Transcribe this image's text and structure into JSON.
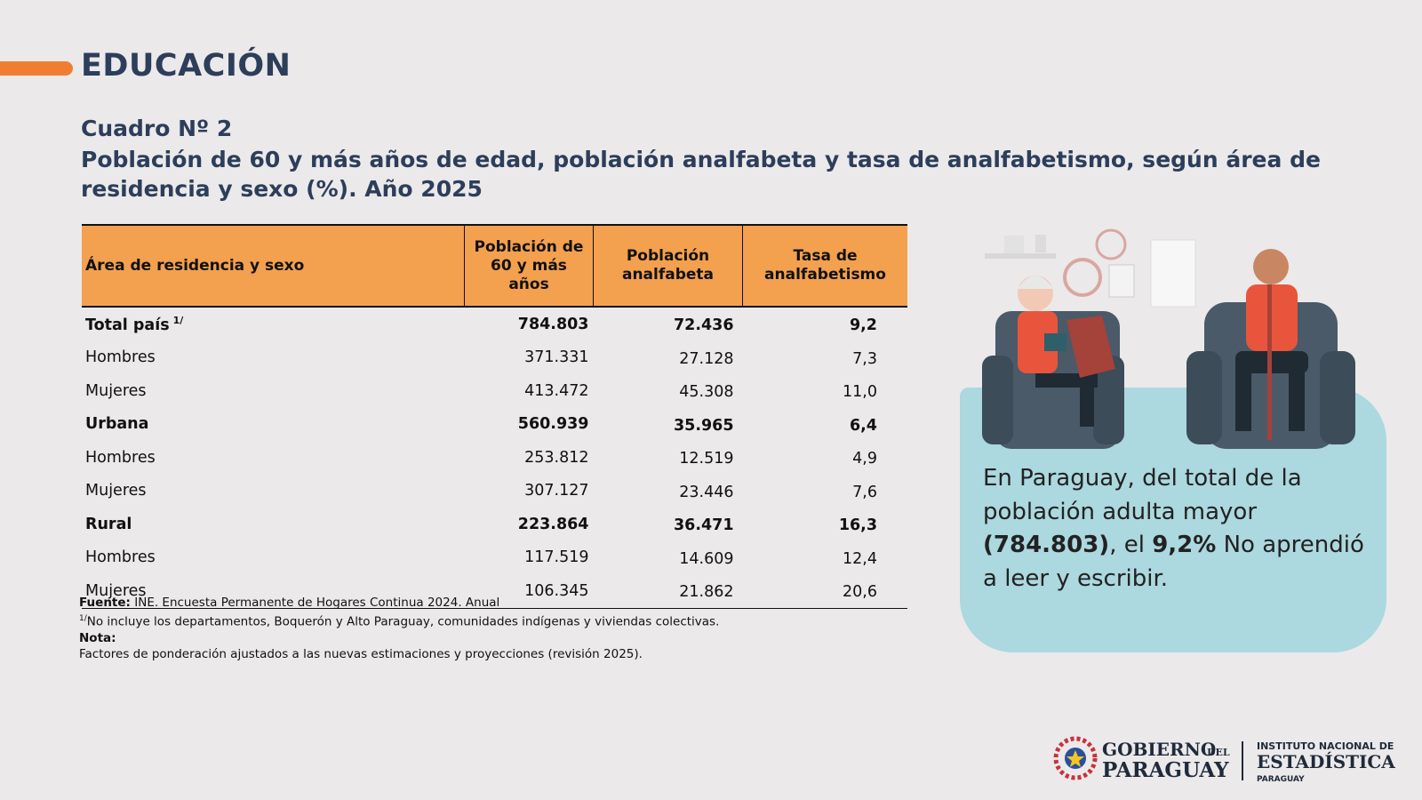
{
  "header": {
    "section": "EDUCACIÓN"
  },
  "title": {
    "label": "Cuadro Nº 2",
    "text": "Población de 60 y más años de edad, población analfabeta y tasa de analfabetismo, según área de residencia y sexo (%). Año 2025"
  },
  "table": {
    "headers": [
      "Área de residencia y sexo",
      "Población de 60 y más años",
      "Población analfabeta",
      "Tasa de analfabetismo"
    ],
    "rows": [
      {
        "cells": [
          "Total país",
          "784.803",
          "72.436",
          "9,2"
        ],
        "bold": true,
        "note_mark": "1/"
      },
      {
        "cells": [
          "Hombres",
          "371.331",
          "27.128",
          "7,3"
        ],
        "bold": false
      },
      {
        "cells": [
          "Mujeres",
          "413.472",
          "45.308",
          "11,0"
        ],
        "bold": false
      },
      {
        "cells": [
          "Urbana",
          "560.939",
          "35.965",
          "6,4"
        ],
        "bold": true
      },
      {
        "cells": [
          "Hombres",
          "253.812",
          "12.519",
          "4,9"
        ],
        "bold": false
      },
      {
        "cells": [
          "Mujeres",
          "307.127",
          "23.446",
          "7,6"
        ],
        "bold": false
      },
      {
        "cells": [
          "Rural",
          "223.864",
          "36.471",
          "16,3"
        ],
        "bold": true
      },
      {
        "cells": [
          "Hombres",
          "117.519",
          "14.609",
          "12,4"
        ],
        "bold": false
      },
      {
        "cells": [
          "Mujeres",
          "106.345",
          "21.862",
          "20,6"
        ],
        "bold": false
      }
    ]
  },
  "notes": {
    "source_label": "Fuente:",
    "source_text": "INE. Encuesta Permanente de Hogares Continua 2024. Anual",
    "footnote_mark": "1/",
    "footnote_text": "No incluye los departamentos, Boquerón y Alto Paraguay, comunidades indígenas y viviendas colectivas.",
    "note_label": "Nota:",
    "note_text": "Factores de ponderación ajustados a las nuevas estimaciones y proyecciones (revisión 2025)."
  },
  "callout": {
    "segments": [
      {
        "text": "En Paraguay, del total de la población adulta mayor",
        "bold": false
      },
      {
        "text": "(784.803)",
        "bold": true
      },
      {
        "text": ", el",
        "bold": false
      },
      {
        "text": "9,2%",
        "bold": true
      },
      {
        "text": "No aprendió a leer y escribir.",
        "bold": false
      }
    ]
  },
  "logo": {
    "gov_top": "GOBIERNO",
    "gov_del": "DEL",
    "gov_bottom": "PARAGUAY",
    "ine_top": "INSTITUTO NACIONAL DE",
    "ine_main": "ESTADÍSTICA",
    "ine_bottom": "PARAGUAY"
  }
}
